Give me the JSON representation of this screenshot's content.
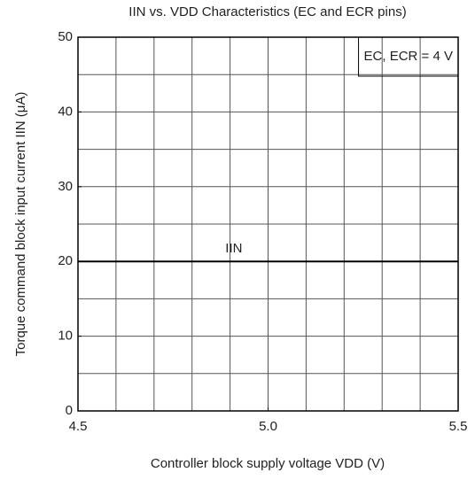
{
  "chart_data": {
    "type": "line",
    "title": "IIN vs. VDD Characteristics (EC and ECR pins)",
    "xlabel": "Controller block supply voltage VDD (V)",
    "ylabel": "Torque command block input current IIN (μA)",
    "annotation": "EC, ECR = 4 V",
    "x": [
      4.5,
      5.5
    ],
    "series": [
      {
        "name": "IIN",
        "color": "#000000",
        "values": [
          20,
          20
        ]
      }
    ],
    "xlim": [
      4.5,
      5.5
    ],
    "xticks": [
      4.5,
      {
        "value": 5,
        "label": "5.0"
      },
      5.5
    ],
    "xgrid": [
      4.6,
      4.7,
      4.8,
      4.9,
      5.0,
      5.1,
      5.2,
      5.3,
      5.4
    ],
    "ylim": [
      0,
      50
    ],
    "yticks": [
      0,
      10,
      20,
      30,
      40,
      50
    ],
    "ygrid": [
      5,
      10,
      15,
      20,
      25,
      30,
      35,
      40,
      45
    ],
    "grid": true
  }
}
